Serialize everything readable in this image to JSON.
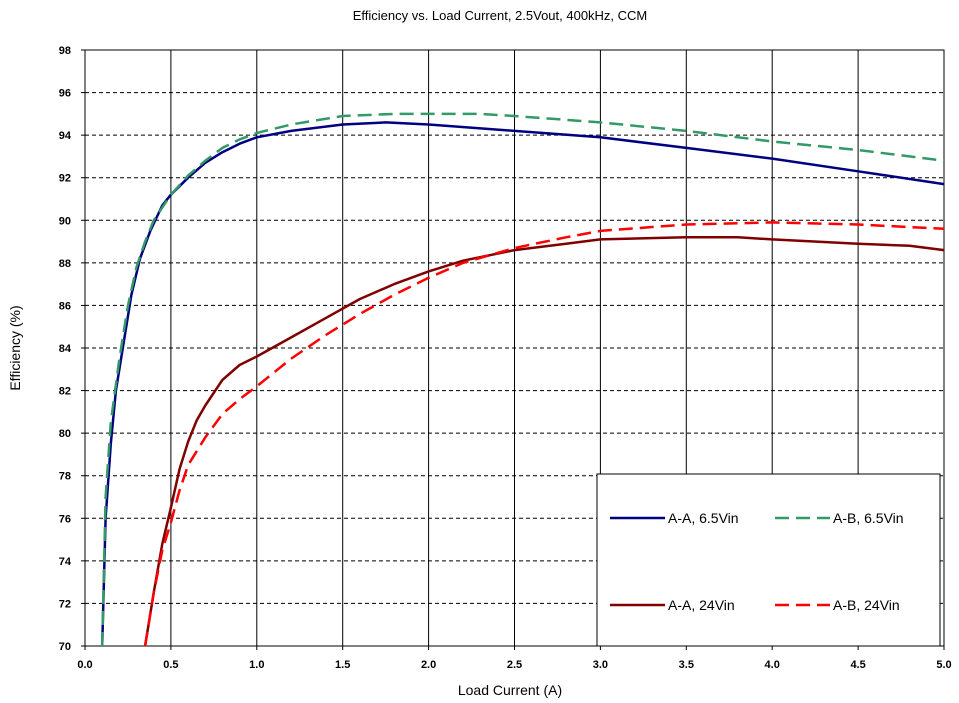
{
  "chart_data": {
    "type": "line",
    "title": "Efficiency vs. Load Current, 2.5Vout, 400kHz,  CCM",
    "xlabel": "Load Current (A)",
    "ylabel": "Efficiency (%)",
    "xlim": [
      0.0,
      5.0
    ],
    "ylim": [
      70,
      98
    ],
    "xticks": [
      "0.0",
      "0.5",
      "1.0",
      "1.5",
      "2.0",
      "2.5",
      "3.0",
      "3.5",
      "4.0",
      "4.5",
      "5.0"
    ],
    "yticks": [
      "70",
      "72",
      "74",
      "76",
      "78",
      "80",
      "82",
      "84",
      "86",
      "88",
      "90",
      "92",
      "94",
      "96",
      "98"
    ],
    "grid": "vertical solid, horizontal dashed",
    "legend_position": "bottom-right",
    "series": [
      {
        "name": "A-A, 6.5Vin",
        "color": "#000080",
        "style": "solid",
        "points": [
          [
            0.1,
            70
          ],
          [
            0.12,
            76
          ],
          [
            0.15,
            79.5
          ],
          [
            0.18,
            82
          ],
          [
            0.22,
            84
          ],
          [
            0.27,
            86.5
          ],
          [
            0.32,
            88.2
          ],
          [
            0.38,
            89.5
          ],
          [
            0.45,
            90.7
          ],
          [
            0.5,
            91.2
          ],
          [
            0.6,
            92
          ],
          [
            0.7,
            92.7
          ],
          [
            0.8,
            93.2
          ],
          [
            0.9,
            93.6
          ],
          [
            1.0,
            93.9
          ],
          [
            1.2,
            94.2
          ],
          [
            1.5,
            94.5
          ],
          [
            1.75,
            94.6
          ],
          [
            2.0,
            94.5
          ],
          [
            2.5,
            94.2
          ],
          [
            3.0,
            93.9
          ],
          [
            3.5,
            93.4
          ],
          [
            4.0,
            92.9
          ],
          [
            4.5,
            92.3
          ],
          [
            5.0,
            91.7
          ]
        ]
      },
      {
        "name": "A-B, 6.5Vin",
        "color": "#339966",
        "style": "dashed",
        "points": [
          [
            0.1,
            70
          ],
          [
            0.12,
            77
          ],
          [
            0.15,
            80.5
          ],
          [
            0.2,
            83.5
          ],
          [
            0.25,
            86
          ],
          [
            0.3,
            87.8
          ],
          [
            0.35,
            89
          ],
          [
            0.4,
            90
          ],
          [
            0.5,
            91.2
          ],
          [
            0.6,
            92.1
          ],
          [
            0.7,
            92.8
          ],
          [
            0.8,
            93.4
          ],
          [
            0.9,
            93.8
          ],
          [
            1.0,
            94.1
          ],
          [
            1.2,
            94.5
          ],
          [
            1.5,
            94.9
          ],
          [
            1.8,
            95
          ],
          [
            2.0,
            95
          ],
          [
            2.3,
            95
          ],
          [
            2.5,
            94.9
          ],
          [
            3.0,
            94.6
          ],
          [
            3.5,
            94.2
          ],
          [
            4.0,
            93.7
          ],
          [
            4.5,
            93.3
          ],
          [
            5.0,
            92.8
          ]
        ]
      },
      {
        "name": "A-A, 24Vin",
        "color": "#800000",
        "style": "solid",
        "points": [
          [
            0.35,
            70
          ],
          [
            0.4,
            72.5
          ],
          [
            0.45,
            74.8
          ],
          [
            0.5,
            76.5
          ],
          [
            0.55,
            78.3
          ],
          [
            0.6,
            79.6
          ],
          [
            0.65,
            80.6
          ],
          [
            0.7,
            81.3
          ],
          [
            0.8,
            82.5
          ],
          [
            0.9,
            83.2
          ],
          [
            1.0,
            83.6
          ],
          [
            1.2,
            84.5
          ],
          [
            1.4,
            85.4
          ],
          [
            1.6,
            86.3
          ],
          [
            1.8,
            87
          ],
          [
            2.0,
            87.6
          ],
          [
            2.2,
            88.1
          ],
          [
            2.5,
            88.6
          ],
          [
            2.8,
            88.9
          ],
          [
            3.0,
            89.1
          ],
          [
            3.5,
            89.2
          ],
          [
            3.8,
            89.2
          ],
          [
            4.0,
            89.1
          ],
          [
            4.5,
            88.9
          ],
          [
            4.8,
            88.8
          ],
          [
            5.0,
            88.6
          ]
        ]
      },
      {
        "name": "A-B, 24Vin",
        "color": "#ff0000",
        "style": "dashed",
        "points": [
          [
            0.35,
            70
          ],
          [
            0.4,
            72.5
          ],
          [
            0.45,
            74.5
          ],
          [
            0.5,
            75.8
          ],
          [
            0.55,
            77.3
          ],
          [
            0.6,
            78.5
          ],
          [
            0.7,
            79.8
          ],
          [
            0.8,
            80.9
          ],
          [
            0.9,
            81.6
          ],
          [
            1.0,
            82.2
          ],
          [
            1.2,
            83.5
          ],
          [
            1.4,
            84.6
          ],
          [
            1.6,
            85.6
          ],
          [
            1.8,
            86.5
          ],
          [
            2.0,
            87.3
          ],
          [
            2.2,
            88
          ],
          [
            2.5,
            88.7
          ],
          [
            2.8,
            89.2
          ],
          [
            3.0,
            89.5
          ],
          [
            3.5,
            89.8
          ],
          [
            4.0,
            89.9
          ],
          [
            4.5,
            89.8
          ],
          [
            5.0,
            89.6
          ]
        ]
      }
    ]
  }
}
